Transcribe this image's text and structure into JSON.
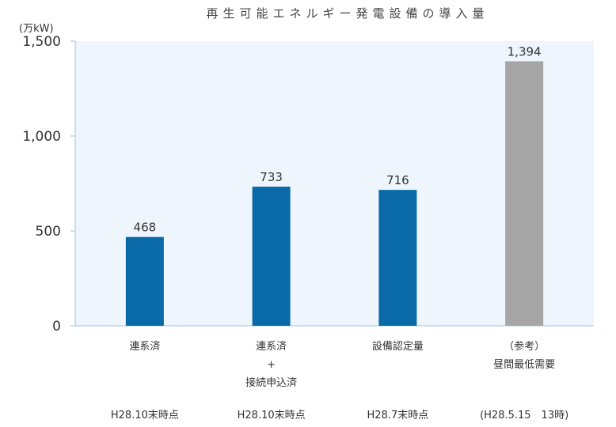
{
  "chart_data": {
    "type": "bar",
    "title": "再生可能エネルギー発電設備の導入量",
    "unit": "(万kW)",
    "ylim": [
      0,
      1500
    ],
    "yticks": [
      0,
      500,
      1000,
      1500
    ],
    "ytick_labels": [
      "0",
      "500",
      "1,000",
      "1,500"
    ],
    "grid": false,
    "categories": [
      {
        "lines": [
          "連系済"
        ],
        "date": "H28.10末時点",
        "value": 468,
        "value_label": "468",
        "color": "#0a6aa8"
      },
      {
        "lines": [
          "連系済",
          "+",
          "接続申込済"
        ],
        "date": "H28.10末時点",
        "value": 733,
        "value_label": "733",
        "color": "#0a6aa8"
      },
      {
        "lines": [
          "設備認定量"
        ],
        "date": "H28.7末時点",
        "value": 716,
        "value_label": "716",
        "color": "#0a6aa8"
      },
      {
        "lines": [
          "（参考）",
          "昼間最低需要"
        ],
        "date": "(H28.5.15　13時)",
        "value": 1394,
        "value_label": "1,394",
        "color": "#a6a6a6"
      }
    ],
    "colors": {
      "plot_bg": "#eef5fc",
      "axis": "#9fc2e2",
      "bar_main": "#0a6aa8",
      "bar_ref": "#a6a6a6"
    }
  }
}
